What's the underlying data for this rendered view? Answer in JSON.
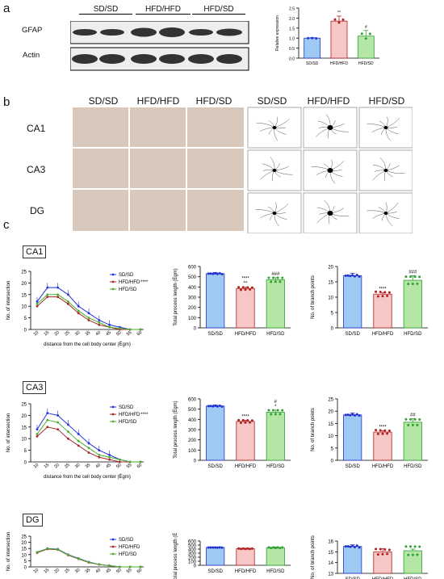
{
  "panels": {
    "a": "a",
    "b": "b",
    "c": "c"
  },
  "wb": {
    "groups": [
      "SD/SD",
      "HFD/HFD",
      "HFD/SD"
    ],
    "rows": [
      "GFAP",
      "Actin"
    ]
  },
  "bar_a": {
    "ylabel": "Relative expression",
    "cats": [
      "SD/SD",
      "HFD/HFD",
      "HFD/SD"
    ],
    "values": [
      1.0,
      1.85,
      1.1
    ],
    "err": [
      0.02,
      0.25,
      0.28
    ],
    "ylim": [
      0,
      2.5
    ],
    "ticks": [
      "0.0",
      "0.5",
      "1.0",
      "1.5",
      "2.0",
      "2.5"
    ],
    "sig": [
      "",
      "**",
      "#"
    ],
    "colors": [
      "#9ec9f2",
      "#f7c6c6",
      "#b4e6a6"
    ]
  },
  "panel_b": {
    "micro_headers": [
      "SD/SD",
      "HFD/HFD",
      "HFD/SD"
    ],
    "morph_headers": [
      "SD/SD",
      "HFD/HFD",
      "HFD/SD"
    ],
    "regions": [
      "CA1",
      "CA3",
      "DG"
    ]
  },
  "panel_c": {
    "regions": [
      "CA1",
      "CA3",
      "DG"
    ],
    "sholl_xlabel": "distance from the cell body center (Ëgm)",
    "sholl_ylabel": "No. of intersection",
    "length_ylabel": "Total process length (Ëgm)",
    "branch_ylabel": "No. of branch points",
    "cats": [
      "SD/SD",
      "HFD/HFD",
      "HFD/SD"
    ],
    "legend": [
      "SD/SD",
      "HFD/HFD",
      "HFD/SD"
    ],
    "legend_sig": [
      "",
      "****",
      ""
    ],
    "legend_sig_dg": [
      "",
      "",
      ""
    ],
    "xticks": [
      "10",
      "15",
      "20",
      "25",
      "30",
      "35",
      "40",
      "45",
      "50",
      "55",
      "60"
    ]
  },
  "chart_data": [
    {
      "type": "bar",
      "ylabel": "Relative expression",
      "categories": [
        "SD/SD",
        "HFD/HFD",
        "HFD/SD"
      ],
      "values": [
        1.0,
        1.85,
        1.1
      ],
      "ylim": [
        0,
        2.5
      ]
    },
    {
      "type": "line",
      "region": "CA1",
      "xlabel": "distance from the cell body center (Ëgm)",
      "ylabel": "No. of intersection",
      "x": [
        10,
        15,
        20,
        25,
        30,
        35,
        40,
        45,
        50,
        55,
        60
      ],
      "ylim": [
        0,
        25
      ],
      "series": [
        {
          "name": "SD/SD",
          "values": [
            12,
            18,
            18,
            15,
            10,
            7,
            4,
            2,
            1,
            0,
            0
          ]
        },
        {
          "name": "HFD/HFD",
          "values": [
            10,
            14,
            14,
            11,
            7,
            4,
            2,
            1,
            0,
            0,
            0
          ]
        },
        {
          "name": "HFD/SD",
          "values": [
            11,
            15,
            15,
            12,
            8,
            5,
            3,
            1,
            0.5,
            0,
            0
          ]
        }
      ]
    },
    {
      "type": "bar",
      "region": "CA1",
      "ylabel": "Total process length (Ëgm)",
      "categories": [
        "SD/SD",
        "HFD/HFD",
        "HFD/SD"
      ],
      "values": [
        530,
        385,
        470
      ],
      "ylim": [
        0,
        600
      ]
    },
    {
      "type": "bar",
      "region": "CA1",
      "ylabel": "No. of branch points",
      "categories": [
        "SD/SD",
        "HFD/HFD",
        "HFD/SD"
      ],
      "values": [
        17,
        11,
        15.5
      ],
      "ylim": [
        0,
        20
      ]
    },
    {
      "type": "line",
      "region": "CA3",
      "xlabel": "distance from the cell body center (Ëgm)",
      "ylabel": "No. of intersection",
      "x": [
        10,
        15,
        20,
        25,
        30,
        35,
        40,
        45,
        50,
        55,
        60
      ],
      "ylim": [
        0,
        25
      ],
      "series": [
        {
          "name": "SD/SD",
          "values": [
            14,
            21,
            20,
            16,
            12,
            8,
            5,
            3,
            1,
            0,
            0
          ]
        },
        {
          "name": "HFD/HFD",
          "values": [
            11,
            15,
            14,
            10,
            7,
            4,
            2,
            1,
            0,
            0,
            0
          ]
        },
        {
          "name": "HFD/SD",
          "values": [
            12,
            18,
            17,
            13,
            9,
            6,
            3,
            2,
            1,
            0,
            0
          ]
        }
      ]
    },
    {
      "type": "bar",
      "region": "CA3",
      "ylabel": "Total process length (Ëgm)",
      "categories": [
        "SD/SD",
        "HFD/HFD",
        "HFD/SD"
      ],
      "values": [
        530,
        380,
        470
      ],
      "ylim": [
        0,
        600
      ]
    },
    {
      "type": "bar",
      "region": "CA3",
      "ylabel": "No. of branch points",
      "categories": [
        "SD/SD",
        "HFD/HFD",
        "HFD/SD"
      ],
      "values": [
        18.5,
        11.5,
        15.5
      ],
      "ylim": [
        0,
        25
      ]
    },
    {
      "type": "line",
      "region": "DG",
      "xlabel": "distance from the cell body center (Ëgm)",
      "ylabel": "No. of intersection",
      "x": [
        10,
        15,
        20,
        25,
        30,
        35,
        40,
        45,
        50,
        55,
        60
      ],
      "ylim": [
        0,
        25
      ],
      "series": [
        {
          "name": "SD/SD",
          "values": [
            12,
            15,
            14.5,
            10,
            7,
            4,
            2,
            1,
            0,
            0,
            0
          ]
        },
        {
          "name": "HFD/HFD",
          "values": [
            11.5,
            14.5,
            14,
            9.5,
            6.5,
            3.5,
            2,
            1,
            0,
            0,
            0
          ]
        },
        {
          "name": "HFD/SD",
          "values": [
            12,
            14.8,
            14.3,
            9.8,
            6.8,
            3.8,
            2,
            1,
            0,
            0,
            0
          ]
        }
      ]
    },
    {
      "type": "bar",
      "region": "DG",
      "ylabel": "Total process length (Ëgm)",
      "categories": [
        "SD/SD",
        "HFD/HFD",
        "HFD/SD"
      ],
      "values": [
        440,
        410,
        435
      ],
      "ylim": [
        0,
        600
      ]
    },
    {
      "type": "bar",
      "region": "DG",
      "ylabel": "No. of branch points",
      "categories": [
        "SD/SD",
        "HFD/HFD",
        "HFD/SD"
      ],
      "values": [
        15.5,
        15,
        15.1
      ],
      "ylim": [
        13,
        16
      ]
    }
  ],
  "length_ticks": [
    "0",
    "100",
    "200",
    "300",
    "400",
    "500",
    "600"
  ],
  "branch_ticks_ca1": [
    "0",
    "5",
    "10",
    "15",
    "20"
  ],
  "branch_ticks_ca3": [
    "0",
    "5",
    "10",
    "15",
    "20",
    "25"
  ],
  "branch_ticks_dg": [
    "13",
    "14",
    "15",
    "16"
  ],
  "sholl_yticks": [
    "0",
    "5",
    "10",
    "15",
    "20",
    "25"
  ],
  "sig_length": {
    "ca1": [
      "",
      "****\n**",
      "###"
    ],
    "ca3": [
      "",
      "****",
      "#\n*"
    ],
    "dg": [
      "",
      "",
      ""
    ]
  },
  "sig_branch": {
    "ca1": [
      "",
      "****",
      "###"
    ],
    "ca3": [
      "",
      "****",
      "##"
    ],
    "dg": [
      "",
      "",
      ""
    ]
  }
}
